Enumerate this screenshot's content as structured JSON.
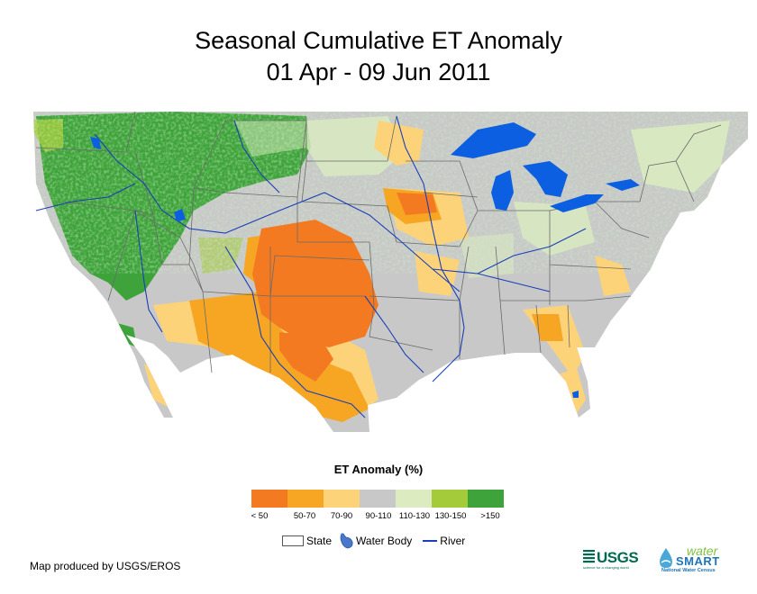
{
  "title": {
    "line1": "Seasonal Cumulative ET Anomaly",
    "line2": "01 Apr - 09 Jun 2011"
  },
  "legend": {
    "title": "ET Anomaly (%)",
    "classes": [
      {
        "label": "< 50",
        "color": "#f47a22"
      },
      {
        "label": "50-70",
        "color": "#f6a623"
      },
      {
        "label": "70-90",
        "color": "#fdd37a"
      },
      {
        "label": "90-110",
        "color": "#c8c8c8"
      },
      {
        "label": "110-130",
        "color": "#dcebc0"
      },
      {
        "label": "130-150",
        "color": "#a4cc3a"
      },
      {
        "label": ">150",
        "color": "#3ea33a"
      }
    ],
    "symbols": {
      "state": "State",
      "water_body": "Water Body",
      "river": "River"
    }
  },
  "map": {
    "water_color": "#0b5fe0",
    "river_color": "#1a3fb8",
    "state_line_color": "#6b6b6b"
  },
  "credit": "Map produced by USGS/EROS",
  "logos": {
    "usgs": "USGS",
    "usgs_tagline": "science for a changing world",
    "water": "water",
    "smart": "SMART",
    "census": "National Water Census"
  }
}
